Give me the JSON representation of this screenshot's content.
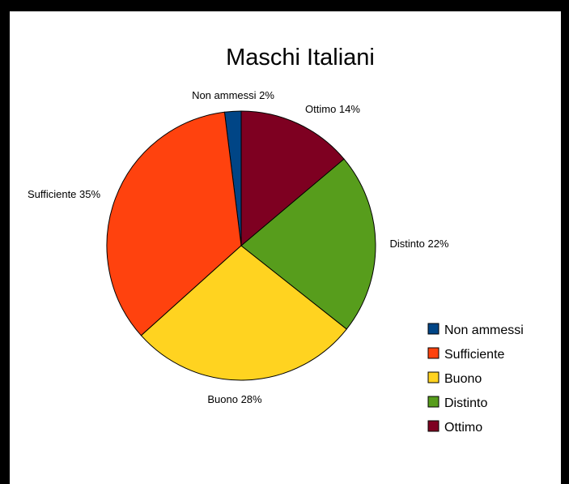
{
  "chart_data": {
    "type": "pie",
    "title": "Maschi Italiani",
    "categories": [
      "Non ammessi",
      "Sufficiente",
      "Buono",
      "Distinto",
      "Ottimo"
    ],
    "values": [
      2,
      35,
      28,
      22,
      14
    ],
    "data_labels": [
      "Non ammessi 2%",
      "Sufficiente 35%",
      "Buono 28%",
      "Distinto 22%",
      "Ottimo 14%"
    ],
    "colors": [
      "#004586",
      "#ff420e",
      "#ffd320",
      "#579d1c",
      "#7e0021"
    ],
    "legend_position": "right"
  }
}
